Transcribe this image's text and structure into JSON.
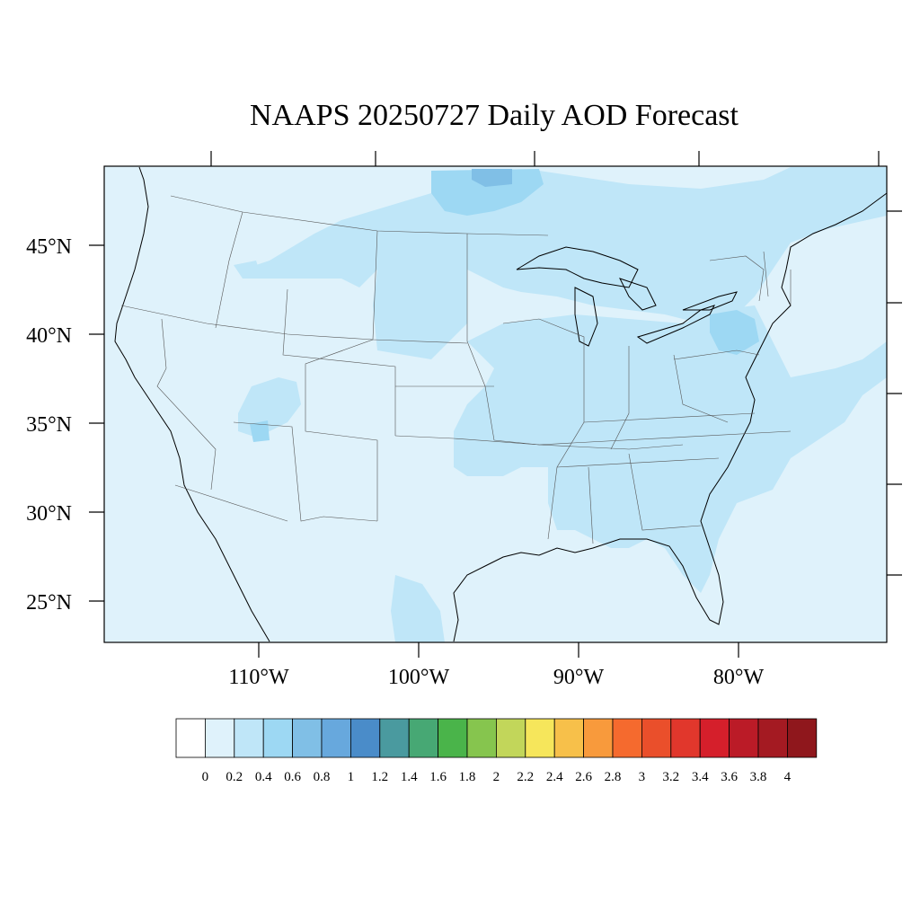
{
  "title": "NAAPS 20250727 Daily AOD Forecast",
  "lat_labels": [
    "45°N",
    "40°N",
    "35°N",
    "30°N",
    "25°N"
  ],
  "lon_labels": [
    "110°W",
    "100°W",
    "90°W",
    "80°W"
  ],
  "colorbar": {
    "labels": [
      "0",
      "0.2",
      "0.4",
      "0.6",
      "0.8",
      "1",
      "1.2",
      "1.4",
      "1.6",
      "1.8",
      "2",
      "2.2",
      "2.4",
      "2.6",
      "2.8",
      "3",
      "3.2",
      "3.4",
      "3.6",
      "3.8",
      "4"
    ],
    "colors": [
      "#ffffff",
      "#dff2fb",
      "#bfe6f8",
      "#9dd8f3",
      "#80bfe6",
      "#67a8dd",
      "#4a8cc9",
      "#4a9a9f",
      "#47a874",
      "#4ab44a",
      "#86c54e",
      "#c2d65a",
      "#f6e65b",
      "#f7c04a",
      "#f89a3c",
      "#f56a2e",
      "#ea4f2b",
      "#e1372c",
      "#d51f2b",
      "#bb1b27",
      "#a41a22",
      "#8f171c"
    ]
  },
  "map": {
    "background_color": "#dff2fb",
    "aod_level_color": "#bfe6f8",
    "aod_high_color": "#9dd8f3",
    "aod_peak_color": "#80bfe6"
  }
}
